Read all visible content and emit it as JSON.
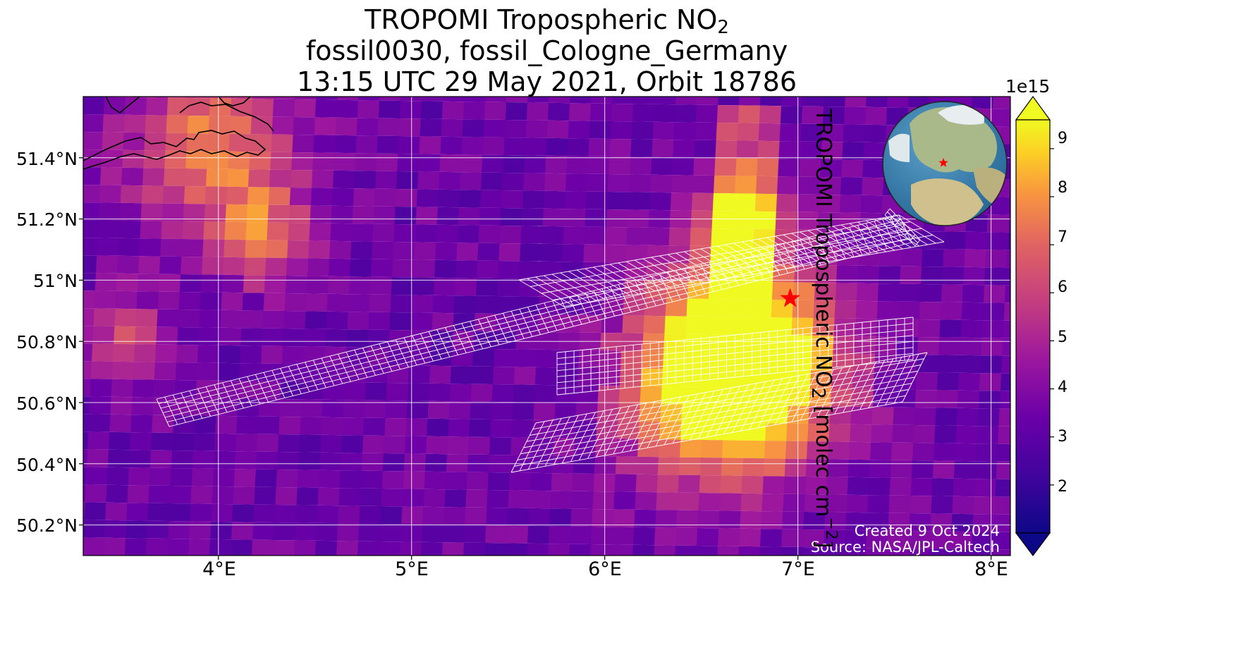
{
  "title": {
    "line1_prefix": "TROPOMI Tropospheric NO",
    "line1_sub": "2",
    "line2": "fossil0030, fossil_Cologne_Germany",
    "line3": "13:15 UTC 29 May 2021, Orbit 18786"
  },
  "map": {
    "lat_labels": [
      "51.4°N",
      "51.2°N",
      "51°N",
      "50.8°N",
      "50.6°N",
      "50.4°N",
      "50.2°N"
    ],
    "lon_labels": [
      "4°E",
      "5°E",
      "6°E",
      "7°E",
      "8°E"
    ],
    "lat_range": [
      50.1,
      51.6
    ],
    "lon_range": [
      3.3,
      8.1
    ],
    "target_marker": {
      "lat": 50.94,
      "lon": 6.96,
      "color": "#ff0000",
      "icon": "star-icon"
    },
    "grid_overlay_color": "#ffffff",
    "coastline_color": "#000000"
  },
  "credits": {
    "created": "Created 9 Oct 2024",
    "source": "Source: NASA/JPL-Caltech"
  },
  "colorbar": {
    "exponent": "1e15",
    "ticks": [
      "2",
      "3",
      "4",
      "5",
      "6",
      "7",
      "8",
      "9"
    ],
    "range": [
      1.0,
      9.6
    ],
    "colormap": "plasma",
    "label_prefix": "TROPOMI Tropospheric NO",
    "label_sub": "2",
    "label_mid": " [molec cm",
    "label_sup": "−2",
    "label_suffix": "]",
    "extend": "both"
  },
  "inset_globe": {
    "marker_color": "#ff0000",
    "icon": "globe-icon"
  }
}
